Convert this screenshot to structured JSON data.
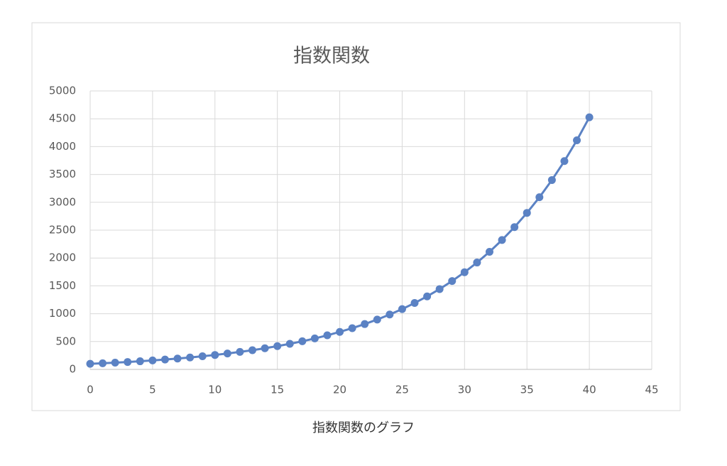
{
  "chart_data": {
    "type": "line",
    "title": "指数関数",
    "x": [
      0,
      1,
      2,
      3,
      4,
      5,
      6,
      7,
      8,
      9,
      10,
      11,
      12,
      13,
      14,
      15,
      16,
      17,
      18,
      19,
      20,
      21,
      22,
      23,
      24,
      25,
      26,
      27,
      28,
      29,
      30,
      31,
      32,
      33,
      34,
      35,
      36,
      37,
      38,
      39,
      40
    ],
    "series": [
      {
        "color": "#5b82c4",
        "values": [
          100,
          110,
          121,
          133,
          146,
          161,
          177,
          195,
          214,
          236,
          259,
          285,
          314,
          345,
          380,
          418,
          459,
          505,
          556,
          612,
          673,
          740,
          814,
          895,
          985,
          1083,
          1192,
          1311,
          1442,
          1586,
          1745,
          1919,
          2111,
          2323,
          2555,
          2810,
          3091,
          3400,
          3740,
          4114,
          4526
        ]
      }
    ],
    "xlim": [
      0,
      45
    ],
    "xticks": [
      0,
      5,
      10,
      15,
      20,
      25,
      30,
      35,
      40,
      45
    ],
    "ylim": [
      0,
      5000
    ],
    "yticks": [
      0,
      500,
      1000,
      1500,
      2000,
      2500,
      3000,
      3500,
      4000,
      4500,
      5000
    ],
    "grid": true,
    "markers": true
  },
  "caption": "指数関数のグラフ"
}
